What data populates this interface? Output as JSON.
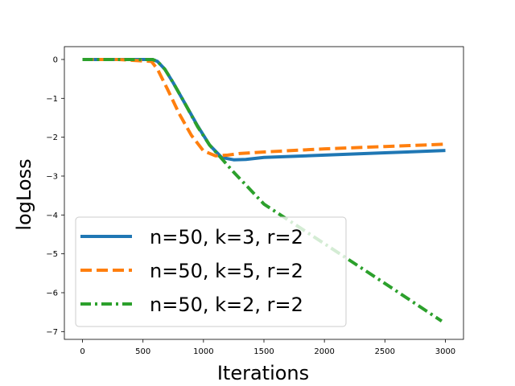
{
  "chart_data": {
    "type": "line",
    "xlabel": "Iterations",
    "ylabel": "logLoss",
    "xlim": [
      -150,
      3150
    ],
    "ylim": [
      -7.2,
      0.33
    ],
    "xticks": [
      0,
      500,
      1000,
      1500,
      2000,
      2500,
      3000
    ],
    "yticks": [
      0,
      -1,
      -2,
      -3,
      -4,
      -5,
      -6,
      -7
    ],
    "xtick_labels": [
      "0",
      "500",
      "1000",
      "1500",
      "2000",
      "2500",
      "3000"
    ],
    "ytick_labels": [
      "0",
      "−1",
      "−2",
      "−3",
      "−4",
      "−5",
      "−6",
      "−7"
    ],
    "grid": false,
    "legend_placement": "lower-left",
    "series": [
      {
        "name": "n=50, k=3, r=2",
        "color": "#1f77b4",
        "style": "solid",
        "x": [
          0,
          300,
          580,
          620,
          680,
          750,
          850,
          950,
          1050,
          1150,
          1250,
          1350,
          1500,
          2000,
          2500,
          3000
        ],
        "y": [
          0,
          0,
          0,
          -0.05,
          -0.25,
          -0.6,
          -1.15,
          -1.7,
          -2.2,
          -2.52,
          -2.58,
          -2.57,
          -2.52,
          -2.46,
          -2.4,
          -2.34
        ]
      },
      {
        "name": "n=50, k=5, r=2",
        "color": "#ff7f0e",
        "style": "dashed",
        "x": [
          0,
          300,
          570,
          620,
          700,
          800,
          900,
          1000,
          1100,
          1200,
          1300,
          1500,
          2000,
          2500,
          3000
        ],
        "y": [
          0,
          0,
          -0.05,
          -0.25,
          -0.75,
          -1.4,
          -1.95,
          -2.35,
          -2.48,
          -2.46,
          -2.42,
          -2.38,
          -2.3,
          -2.24,
          -2.18
        ]
      },
      {
        "name": "n=50, k=2, r=2",
        "color": "#2ca02c",
        "style": "dashdot",
        "x": [
          0,
          300,
          580,
          620,
          680,
          750,
          850,
          950,
          1050,
          1150,
          1250,
          1500,
          2000,
          2500,
          2970
        ],
        "y": [
          0,
          0,
          0,
          -0.05,
          -0.25,
          -0.6,
          -1.15,
          -1.72,
          -2.2,
          -2.55,
          -2.9,
          -3.72,
          -4.74,
          -5.76,
          -6.73
        ]
      }
    ]
  }
}
